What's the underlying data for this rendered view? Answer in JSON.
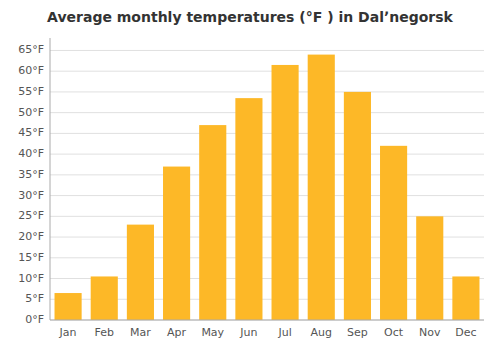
{
  "chart_data": {
    "type": "bar",
    "title": "Average monthly temperatures (°F ) in Dalʼnegorsk",
    "categories": [
      "Jan",
      "Feb",
      "Mar",
      "Apr",
      "May",
      "Jun",
      "Jul",
      "Aug",
      "Sep",
      "Oct",
      "Nov",
      "Dec"
    ],
    "values": [
      6.5,
      10.5,
      23,
      37,
      47,
      53.5,
      61.5,
      64,
      55,
      42,
      25,
      10.5
    ],
    "color": "#FDB827",
    "ylim": [
      0,
      68
    ],
    "yticks": [
      {
        "value": 0,
        "label": "0°F"
      },
      {
        "value": 5,
        "label": "5°F"
      },
      {
        "value": 10,
        "label": "10°F"
      },
      {
        "value": 15,
        "label": "15°F"
      },
      {
        "value": 20,
        "label": "20°F"
      },
      {
        "value": 25,
        "label": "25°F"
      },
      {
        "value": 30,
        "label": "30°F"
      },
      {
        "value": 35,
        "label": "35°F"
      },
      {
        "value": 40,
        "label": "40°F"
      },
      {
        "value": 45,
        "label": "45°F"
      },
      {
        "value": 50,
        "label": "50°F"
      },
      {
        "value": 55,
        "label": "55°F"
      },
      {
        "value": 60,
        "label": "60°F"
      },
      {
        "value": 65,
        "label": "65°F"
      }
    ],
    "grid": true
  }
}
